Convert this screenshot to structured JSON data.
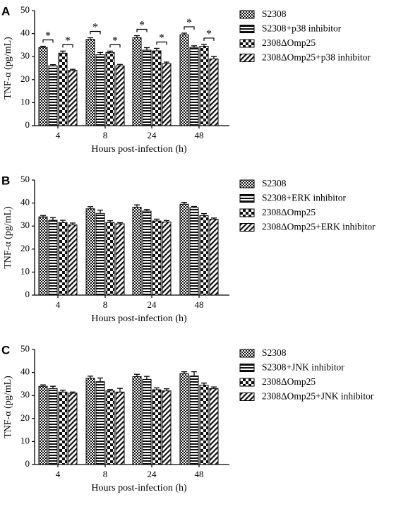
{
  "figure": {
    "panels": [
      "A",
      "B",
      "C"
    ]
  },
  "chart_data": [
    {
      "panel": "A",
      "type": "bar",
      "xlabel": "Hours post-infection (h)",
      "ylabel": "TNF-α  (pg/mL)",
      "ylim": [
        0,
        50
      ],
      "yticks": [
        0,
        10,
        20,
        30,
        40,
        50
      ],
      "categories": [
        "4",
        "8",
        "24",
        "48"
      ],
      "series": [
        {
          "name": "S2308",
          "values": [
            34,
            37.5,
            38.2,
            39.5
          ],
          "errors": [
            0.5,
            0.7,
            0.9,
            0.7
          ]
        },
        {
          "name": "S2308+p38 inhibitor",
          "values": [
            26,
            30.8,
            32.8,
            34
          ],
          "errors": [
            0.5,
            1,
            1.1,
            0.7
          ]
        },
        {
          "name": "2308ΔOmp25",
          "values": [
            31.5,
            31.8,
            32.5,
            34.5
          ],
          "errors": [
            0.9,
            0.6,
            1.1,
            0.8
          ]
        },
        {
          "name": "2308ΔOmp25+p38 inhibitor",
          "values": [
            24,
            26,
            27,
            29
          ],
          "errors": [
            0.5,
            0.6,
            0.6,
            1.1
          ]
        }
      ],
      "significance": [
        {
          "label": "*",
          "pair": [
            0,
            1
          ],
          "category": 0
        },
        {
          "label": "*",
          "pair": [
            2,
            3
          ],
          "category": 0
        },
        {
          "label": "*",
          "pair": [
            0,
            1
          ],
          "category": 1
        },
        {
          "label": "*",
          "pair": [
            2,
            3
          ],
          "category": 1
        },
        {
          "label": "*",
          "pair": [
            0,
            1
          ],
          "category": 2
        },
        {
          "label": "*",
          "pair": [
            2,
            3
          ],
          "category": 2
        },
        {
          "label": "*",
          "pair": [
            0,
            1
          ],
          "category": 3
        },
        {
          "label": "*",
          "pair": [
            2,
            3
          ],
          "category": 3
        }
      ]
    },
    {
      "panel": "B",
      "type": "bar",
      "xlabel": "Hours post-infection (h)",
      "ylabel": "TNF-α  (pg/mL)",
      "ylim": [
        0,
        50
      ],
      "yticks": [
        0,
        10,
        20,
        30,
        40,
        50
      ],
      "categories": [
        "4",
        "8",
        "24",
        "48"
      ],
      "series": [
        {
          "name": "S2308",
          "values": [
            34,
            37.5,
            38.2,
            39.5
          ],
          "errors": [
            0.6,
            0.9,
            1,
            0.8
          ]
        },
        {
          "name": "S2308+ERK inhibitor",
          "values": [
            32.5,
            35.5,
            36.5,
            38
          ],
          "errors": [
            1.2,
            1.4,
            0.7,
            0.5
          ]
        },
        {
          "name": "2308ΔOmp25",
          "values": [
            31.5,
            31.5,
            32.2,
            34.5
          ],
          "errors": [
            1,
            0.8,
            0.8,
            0.9
          ]
        },
        {
          "name": "2308ΔOmp25+ERK inhibitor",
          "values": [
            30.5,
            31,
            31.8,
            33
          ],
          "errors": [
            0.8,
            0.5,
            0.6,
            0.5
          ]
        }
      ],
      "significance": []
    },
    {
      "panel": "C",
      "type": "bar",
      "xlabel": "Hours post-infection (h)",
      "ylabel": "TNF-α  (pg/mL)",
      "ylim": [
        0,
        50
      ],
      "yticks": [
        0,
        10,
        20,
        30,
        40,
        50
      ],
      "categories": [
        "4",
        "8",
        "24",
        "48"
      ],
      "series": [
        {
          "name": "S2308",
          "values": [
            34,
            37.5,
            38.2,
            39.5
          ],
          "errors": [
            0.6,
            0.9,
            1,
            0.8
          ]
        },
        {
          "name": "S2308+JNK inhibitor",
          "values": [
            33,
            36,
            37,
            38.5
          ],
          "errors": [
            1,
            1.6,
            1.3,
            1.8
          ]
        },
        {
          "name": "2308ΔOmp25",
          "values": [
            31.5,
            32,
            32.5,
            34.5
          ],
          "errors": [
            0.8,
            0.6,
            0.8,
            0.9
          ]
        },
        {
          "name": "2308ΔOmp25+JNK inhibitor",
          "values": [
            31,
            31.5,
            32,
            33
          ],
          "errors": [
            0.5,
            1.6,
            0.9,
            0.7
          ]
        }
      ],
      "significance": []
    }
  ]
}
